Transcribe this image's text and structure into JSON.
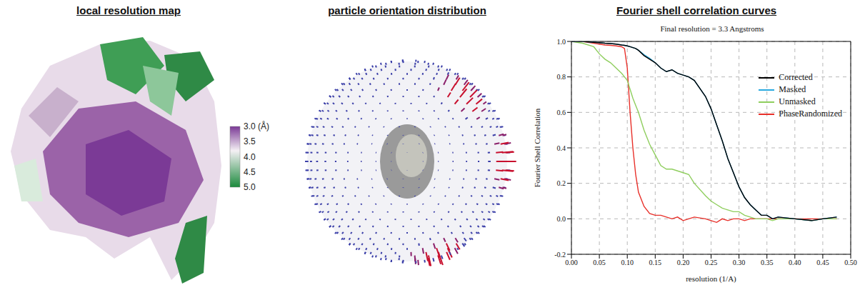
{
  "panels": [
    {
      "title": "local resolution map",
      "colorbar": {
        "range": [
          3,
          5
        ],
        "ticks": [
          {
            "value": 3,
            "label": "3.0 (Å)"
          },
          3.5,
          {
            "value": 4,
            "label": "4.0"
          },
          4.5,
          {
            "value": 5,
            "label": "5.0"
          }
        ]
      }
    },
    {
      "title": "particle orientation distribution"
    },
    {
      "title": "Fourier shell correlation curves"
    }
  ],
  "chart_data": {
    "type": "line",
    "title": "Final resolution = 3.3 Angstroms",
    "x_label": "resolution (1/A)",
    "y_label": "Fourier Shell Correlation",
    "x": [
      0,
      0.02,
      0.04,
      0.05,
      0.06,
      0.07,
      0.08,
      0.09,
      0.095,
      0.1,
      0.105,
      0.11,
      0.115,
      0.12,
      0.13,
      0.14,
      0.15,
      0.16,
      0.17,
      0.18,
      0.19,
      0.2,
      0.21,
      0.22,
      0.24,
      0.25,
      0.26,
      0.27,
      0.28,
      0.29,
      0.3,
      0.31,
      0.32,
      0.33,
      0.34,
      0.35,
      0.36,
      0.37,
      0.4,
      0.43,
      0.45,
      0.475
    ],
    "series": [
      {
        "name": "Corrected",
        "color": "#000000",
        "values": [
          1.0,
          1.0,
          0.995,
          0.993,
          0.99,
          0.988,
          0.985,
          0.98,
          0.978,
          0.975,
          0.97,
          0.965,
          0.96,
          0.95,
          0.92,
          0.9,
          0.88,
          0.85,
          0.83,
          0.84,
          0.82,
          0.81,
          0.8,
          0.78,
          0.69,
          0.62,
          0.53,
          0.44,
          0.34,
          0.26,
          0.18,
          0.12,
          0.08,
          0.05,
          0.02,
          0.02,
          0.0,
          0.01,
          0.0,
          -0.01,
          0.0,
          0.01
        ]
      },
      {
        "name": "Masked",
        "color": "#29a9e0",
        "values": [
          1.0,
          1.0,
          0.995,
          0.993,
          0.99,
          0.988,
          0.985,
          0.98,
          0.978,
          0.975,
          0.97,
          0.965,
          0.96,
          0.95,
          0.925,
          0.905,
          0.88,
          0.85,
          0.83,
          0.84,
          0.82,
          0.81,
          0.8,
          0.78,
          0.69,
          0.62,
          0.53,
          0.44,
          0.34,
          0.26,
          0.18,
          0.12,
          0.08,
          0.05,
          0.02,
          0.02,
          0.0,
          0.01,
          0.0,
          -0.01,
          0.0,
          0.01
        ]
      },
      {
        "name": "Unmasked",
        "color": "#8fce5e",
        "values": [
          1.0,
          0.99,
          0.97,
          0.93,
          0.9,
          0.88,
          0.85,
          0.82,
          0.8,
          0.78,
          0.73,
          0.68,
          0.64,
          0.6,
          0.5,
          0.42,
          0.36,
          0.3,
          0.28,
          0.28,
          0.27,
          0.26,
          0.25,
          0.2,
          0.13,
          0.1,
          0.08,
          0.06,
          0.05,
          0.04,
          0.04,
          0.02,
          0.01,
          0.0,
          0.0,
          0.0,
          -0.01,
          0.0,
          0.0,
          -0.01,
          0.0,
          0.0
        ]
      },
      {
        "name": "PhaseRandomized",
        "color": "#e8302a",
        "values": [
          1.0,
          1.0,
          0.99,
          0.985,
          0.98,
          0.978,
          0.975,
          0.97,
          0.96,
          0.85,
          0.6,
          0.4,
          0.25,
          0.15,
          0.07,
          0.03,
          0.02,
          0.02,
          0.01,
          0.0,
          0.01,
          -0.01,
          0.0,
          0.01,
          0.0,
          -0.01,
          -0.02,
          0.0,
          -0.01,
          0.0,
          0.0,
          -0.01,
          0.0,
          0.0,
          0.0,
          0.0,
          0.0,
          0.0,
          0.0,
          0.0,
          0.0,
          0.0
        ]
      }
    ],
    "xlim": [
      0,
      0.5
    ],
    "xticks": [
      {
        "value": 0,
        "label": "0.00"
      },
      0.05,
      {
        "value": 0.1,
        "label": "0.10"
      },
      0.15,
      {
        "value": 0.2,
        "label": "0.20"
      },
      0.25,
      {
        "value": 0.3,
        "label": "0.30"
      },
      0.35,
      {
        "value": 0.4,
        "label": "0.40"
      },
      0.45,
      {
        "value": 0.5,
        "label": "0.50"
      }
    ],
    "ylim": [
      -0.2,
      1
    ],
    "yticks": [
      -0.2,
      {
        "value": 0,
        "label": "0.0"
      },
      0.2,
      0.4,
      0.6,
      0.8,
      {
        "value": 1,
        "label": "1.0"
      }
    ],
    "grid": true,
    "legend": "upper right"
  }
}
